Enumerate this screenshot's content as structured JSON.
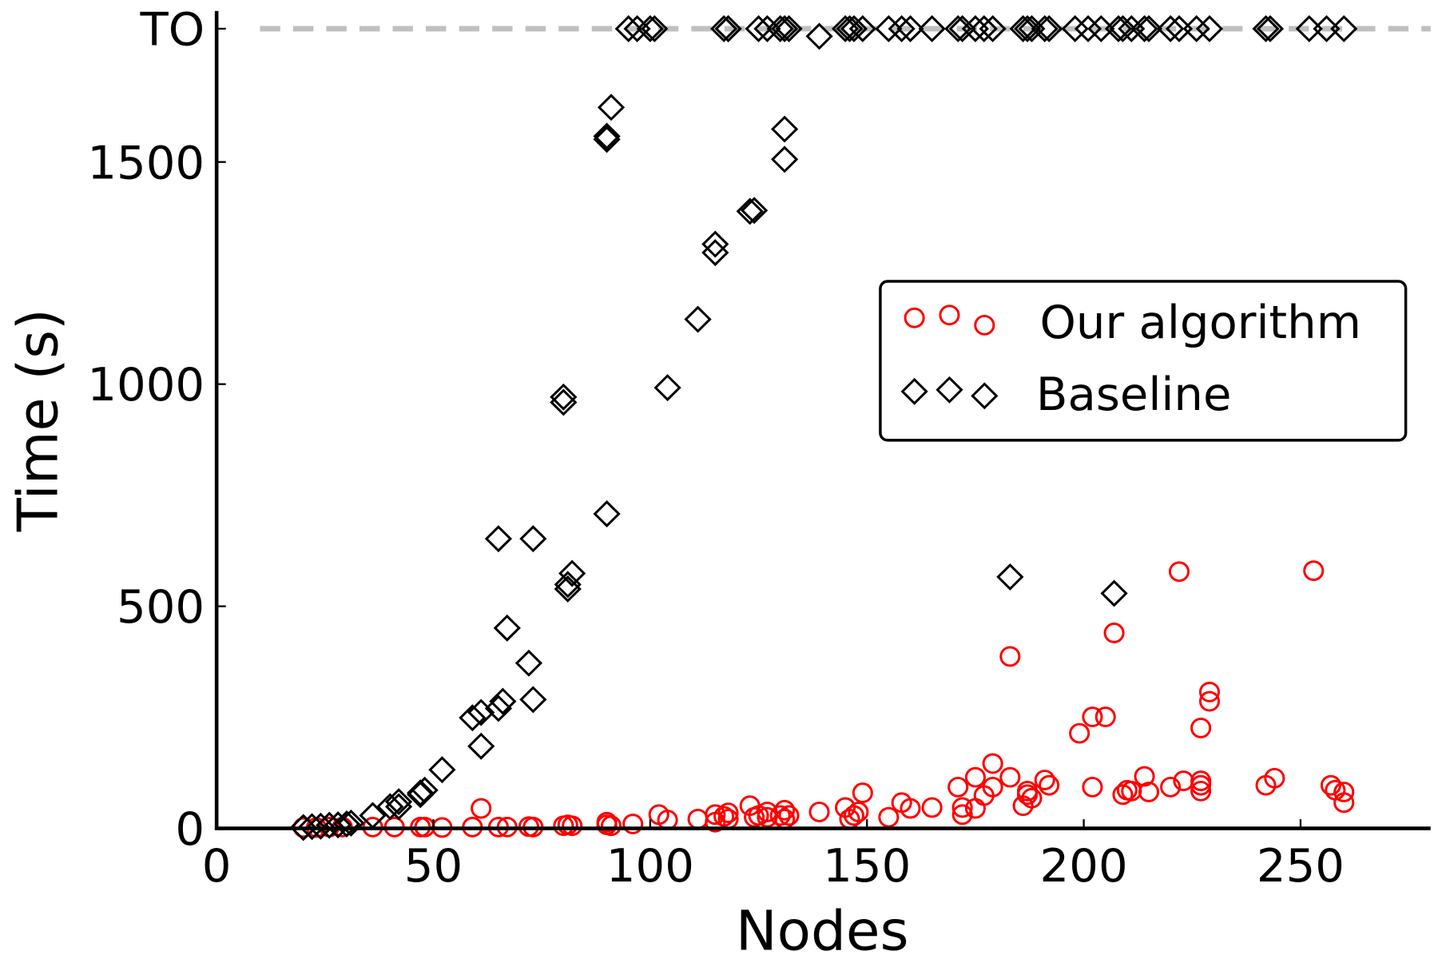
{
  "chart_data": {
    "type": "scatter",
    "title": "",
    "xlabel": "Nodes",
    "ylabel": "Time (s)",
    "xlim": [
      0,
      280
    ],
    "ylim": [
      0,
      1840
    ],
    "x_ticks": [
      0,
      50,
      100,
      150,
      200,
      250
    ],
    "y_ticks": [
      {
        "value": 0,
        "label": "0"
      },
      {
        "value": 500,
        "label": "500"
      },
      {
        "value": 1000,
        "label": "1000"
      },
      {
        "value": 1500,
        "label": "1500"
      },
      {
        "value": 1800,
        "label": "TO"
      }
    ],
    "timeout_line": {
      "value": 1800,
      "label": "TO",
      "color": "#c0c0c0",
      "style": "dashed"
    },
    "grid": false,
    "legend": {
      "placement": "center-right"
    },
    "series": [
      {
        "name": "Our algorithm",
        "marker": "circle",
        "color": "#ff0000",
        "points": [
          [
            20,
            2
          ],
          [
            23,
            2
          ],
          [
            26,
            3
          ],
          [
            29,
            3
          ],
          [
            36,
            3
          ],
          [
            41,
            3
          ],
          [
            47,
            3
          ],
          [
            48,
            3
          ],
          [
            52,
            2
          ],
          [
            59,
            3
          ],
          [
            65,
            3
          ],
          [
            67,
            3
          ],
          [
            72,
            4
          ],
          [
            73,
            3
          ],
          [
            80,
            6
          ],
          [
            81,
            8
          ],
          [
            82,
            6
          ],
          [
            90,
            14
          ],
          [
            90,
            8
          ],
          [
            91,
            6
          ],
          [
            61,
            45
          ],
          [
            96,
            10
          ],
          [
            102,
            31
          ],
          [
            104,
            19
          ],
          [
            111,
            21
          ],
          [
            115,
            31
          ],
          [
            115,
            14
          ],
          [
            117,
            27
          ],
          [
            118,
            35
          ],
          [
            118,
            21
          ],
          [
            123,
            51
          ],
          [
            124,
            25
          ],
          [
            125,
            29
          ],
          [
            127,
            37
          ],
          [
            127,
            25
          ],
          [
            130,
            29
          ],
          [
            131,
            41
          ],
          [
            131,
            21
          ],
          [
            132,
            29
          ],
          [
            139,
            37
          ],
          [
            145,
            47
          ],
          [
            146,
            21
          ],
          [
            147,
            29
          ],
          [
            148,
            37
          ],
          [
            149,
            80
          ],
          [
            155,
            25
          ],
          [
            158,
            58
          ],
          [
            160,
            45
          ],
          [
            165,
            47
          ],
          [
            171,
            93
          ],
          [
            172,
            47
          ],
          [
            172,
            31
          ],
          [
            175,
            115
          ],
          [
            175,
            45
          ],
          [
            177,
            74
          ],
          [
            179,
            93
          ],
          [
            179,
            146
          ],
          [
            183,
            115
          ],
          [
            183,
            387
          ],
          [
            186,
            51
          ],
          [
            187,
            76
          ],
          [
            187,
            84
          ],
          [
            188,
            68
          ],
          [
            191,
            109
          ],
          [
            192,
            97
          ],
          [
            199,
            214
          ],
          [
            202,
            251
          ],
          [
            205,
            251
          ],
          [
            202,
            93
          ],
          [
            207,
            440
          ],
          [
            209,
            76
          ],
          [
            210,
            86
          ],
          [
            211,
            84
          ],
          [
            214,
            117
          ],
          [
            215,
            82
          ],
          [
            220,
            93
          ],
          [
            223,
            107
          ],
          [
            222,
            578
          ],
          [
            227,
            226
          ],
          [
            227,
            107
          ],
          [
            227,
            97
          ],
          [
            227,
            84
          ],
          [
            229,
            286
          ],
          [
            229,
            307
          ],
          [
            242,
            97
          ],
          [
            244,
            113
          ],
          [
            253,
            580
          ],
          [
            257,
            97
          ],
          [
            258,
            86
          ],
          [
            260,
            82
          ],
          [
            260,
            58
          ]
        ]
      },
      {
        "name": "Baseline",
        "marker": "diamond",
        "color": "#000000",
        "points": [
          [
            20,
            2
          ],
          [
            22,
            4
          ],
          [
            24,
            5
          ],
          [
            26,
            7
          ],
          [
            28,
            8
          ],
          [
            30,
            10
          ],
          [
            31,
            12
          ],
          [
            36,
            29
          ],
          [
            40,
            49
          ],
          [
            42,
            60
          ],
          [
            42,
            49
          ],
          [
            47,
            76
          ],
          [
            48,
            86
          ],
          [
            47,
            80
          ],
          [
            52,
            132
          ],
          [
            59,
            249
          ],
          [
            61,
            261
          ],
          [
            61,
            185
          ],
          [
            65,
            270
          ],
          [
            66,
            286
          ],
          [
            65,
            652
          ],
          [
            67,
            451
          ],
          [
            72,
            372
          ],
          [
            73,
            652
          ],
          [
            73,
            290
          ],
          [
            80,
            971
          ],
          [
            80,
            959
          ],
          [
            81,
            539
          ],
          [
            81,
            549
          ],
          [
            82,
            574
          ],
          [
            90,
            708
          ],
          [
            90,
            1558
          ],
          [
            90,
            1551
          ],
          [
            91,
            1623
          ],
          [
            104,
            992
          ],
          [
            111,
            1146
          ],
          [
            115,
            1296
          ],
          [
            115,
            1315
          ],
          [
            123,
            1389
          ],
          [
            124,
            1391
          ],
          [
            131,
            1506
          ],
          [
            131,
            1574
          ],
          [
            183,
            566
          ],
          [
            207,
            529
          ],
          [
            95,
            1800
          ],
          [
            97,
            1800
          ],
          [
            100,
            1800
          ],
          [
            101,
            1800
          ],
          [
            117,
            1800
          ],
          [
            118,
            1800
          ],
          [
            118,
            1800
          ],
          [
            125,
            1800
          ],
          [
            127,
            1800
          ],
          [
            130,
            1800
          ],
          [
            131,
            1800
          ],
          [
            132,
            1800
          ],
          [
            139,
            1783
          ],
          [
            145,
            1800
          ],
          [
            146,
            1800
          ],
          [
            147,
            1800
          ],
          [
            149,
            1800
          ],
          [
            155,
            1800
          ],
          [
            158,
            1800
          ],
          [
            160,
            1800
          ],
          [
            165,
            1800
          ],
          [
            171,
            1800
          ],
          [
            172,
            1800
          ],
          [
            175,
            1800
          ],
          [
            177,
            1800
          ],
          [
            179,
            1800
          ],
          [
            186,
            1800
          ],
          [
            187,
            1800
          ],
          [
            188,
            1800
          ],
          [
            191,
            1800
          ],
          [
            192,
            1800
          ],
          [
            198,
            1800
          ],
          [
            201,
            1800
          ],
          [
            204,
            1800
          ],
          [
            208,
            1800
          ],
          [
            209,
            1800
          ],
          [
            211,
            1800
          ],
          [
            214,
            1800
          ],
          [
            215,
            1800
          ],
          [
            220,
            1800
          ],
          [
            222,
            1800
          ],
          [
            226,
            1800
          ],
          [
            229,
            1800
          ],
          [
            242,
            1800
          ],
          [
            243,
            1800
          ],
          [
            252,
            1800
          ],
          [
            256,
            1800
          ],
          [
            260,
            1800
          ]
        ]
      }
    ]
  }
}
